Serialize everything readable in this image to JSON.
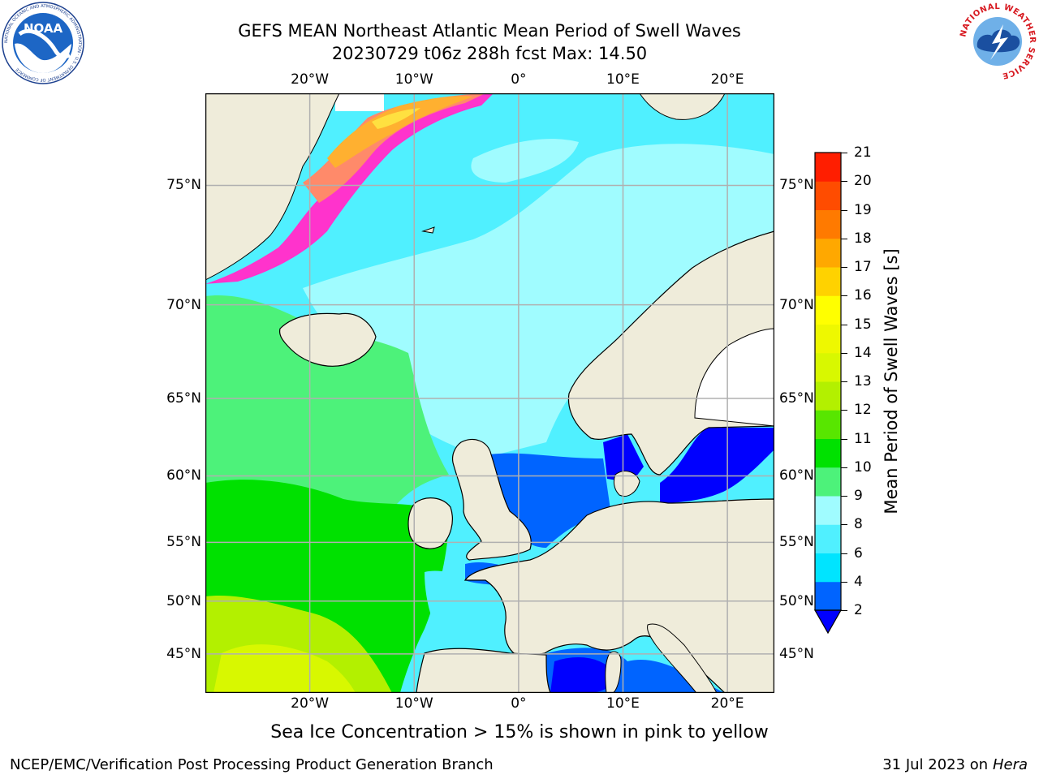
{
  "title": {
    "line1": "GEFS MEAN Northeast Atlantic Mean Period of Swell Waves",
    "line2": "20230729 t06z 288h fcst   Max: 14.50"
  },
  "map": {
    "lon_ticks": [
      "20°W",
      "10°W",
      "0°",
      "10°E",
      "20°E"
    ],
    "lon_values": [
      -20,
      -10,
      0,
      10,
      20
    ],
    "lat_ticks": [
      "75°N",
      "70°N",
      "65°N",
      "60°N",
      "55°N",
      "50°N",
      "45°N"
    ],
    "lat_values": [
      75,
      70,
      65,
      60,
      55,
      50,
      45
    ],
    "extent": {
      "lon_min": -30,
      "lon_max": 24.5,
      "lat_min": 41,
      "lat_max": 78
    },
    "colors": {
      "land": "#efecda",
      "ice_white": "#ffffff",
      "grid": "#b0b0b0"
    }
  },
  "colorbar": {
    "label": "Mean Period of Swell Waves [s]",
    "ticks": [
      "2",
      "4",
      "6",
      "8",
      "9",
      "10",
      "11",
      "12",
      "13",
      "14",
      "15",
      "16",
      "17",
      "18",
      "19",
      "20",
      "21"
    ],
    "colors": [
      "#0064ff",
      "#00e4ff",
      "#50f0ff",
      "#a0fcff",
      "#4df27a",
      "#00e100",
      "#58e600",
      "#b3f000",
      "#d8f800",
      "#eef800",
      "#ffff00",
      "#ffd200",
      "#ffa800",
      "#ff7a00",
      "#ff4c00",
      "#ff1e00"
    ],
    "under_color": "#0000ff"
  },
  "caption": "Sea Ice Concentration > 15% is shown in pink to yellow",
  "footer": {
    "left": "NCEP/EMC/Verification Post Processing Product Generation Branch",
    "right_date": "31 Jul 2023 on ",
    "right_host": "Hera"
  },
  "logos": {
    "noaa_text": "NOAA",
    "noaa_ring": "NATIONAL OCEANIC AND ATMOSPHERIC ADMINISTRATION · U.S. DEPARTMENT OF COMMERCE",
    "nws_ring": "NATIONAL WEATHER SERVICE"
  }
}
